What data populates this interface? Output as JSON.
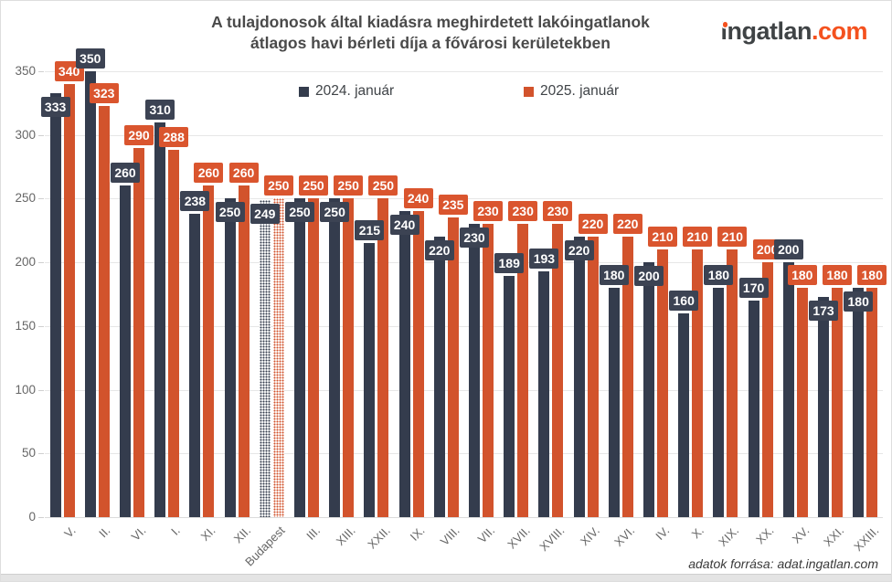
{
  "header": {
    "title_line1": "A tulajdonosok által kiadásra meghirdetett lakóingatlanok",
    "title_line2": "átlagos havi bérleti díja a fővárosi kerületekben",
    "logo": {
      "name": "ingatlan",
      "tld": ".com",
      "name_color": "#3f4345",
      "tld_color": "#f4511e"
    }
  },
  "legend": [
    {
      "label": "2024. január",
      "color": "#343c4d"
    },
    {
      "label": "2025. január",
      "color": "#d2532c"
    }
  ],
  "footer": {
    "source": "adatok forrása: adat.ingatlan.com"
  },
  "chart_data": {
    "type": "bar",
    "title": "A tulajdonosok által kiadásra meghirdetett lakóingatlanok átlagos havi bérleti díja a fővárosi kerületekben",
    "categories": [
      "V.",
      "II.",
      "VI.",
      "I.",
      "XI.",
      "XII.",
      "Budapest",
      "III.",
      "XIII.",
      "XXII.",
      "IX.",
      "VIII.",
      "VII.",
      "XVII.",
      "XVIII.",
      "XIV.",
      "XVI.",
      "IV.",
      "X.",
      "XIX.",
      "XX.",
      "XV.",
      "XXI.",
      "XXIII."
    ],
    "series": [
      {
        "name": "2024. január",
        "color": "#343c4d",
        "label_bg": "#3c4353",
        "values": [
          333,
          350,
          260,
          310,
          238,
          250,
          249,
          250,
          250,
          215,
          240,
          220,
          230,
          189,
          193,
          220,
          180,
          200,
          160,
          180,
          170,
          200,
          173,
          180
        ]
      },
      {
        "name": "2025. január",
        "color": "#d2532c",
        "label_bg": "#da552e",
        "values": [
          340,
          323,
          290,
          288,
          260,
          260,
          250,
          250,
          250,
          250,
          240,
          235,
          230,
          230,
          230,
          220,
          220,
          210,
          210,
          210,
          200,
          180,
          180,
          180
        ]
      }
    ],
    "highlight_category": "Budapest",
    "xlabel": "",
    "ylabel": "",
    "ylim": [
      0,
      350
    ],
    "yticks": [
      0,
      50,
      100,
      150,
      200,
      250,
      300,
      350
    ],
    "grid": true,
    "legend_position": "top"
  }
}
